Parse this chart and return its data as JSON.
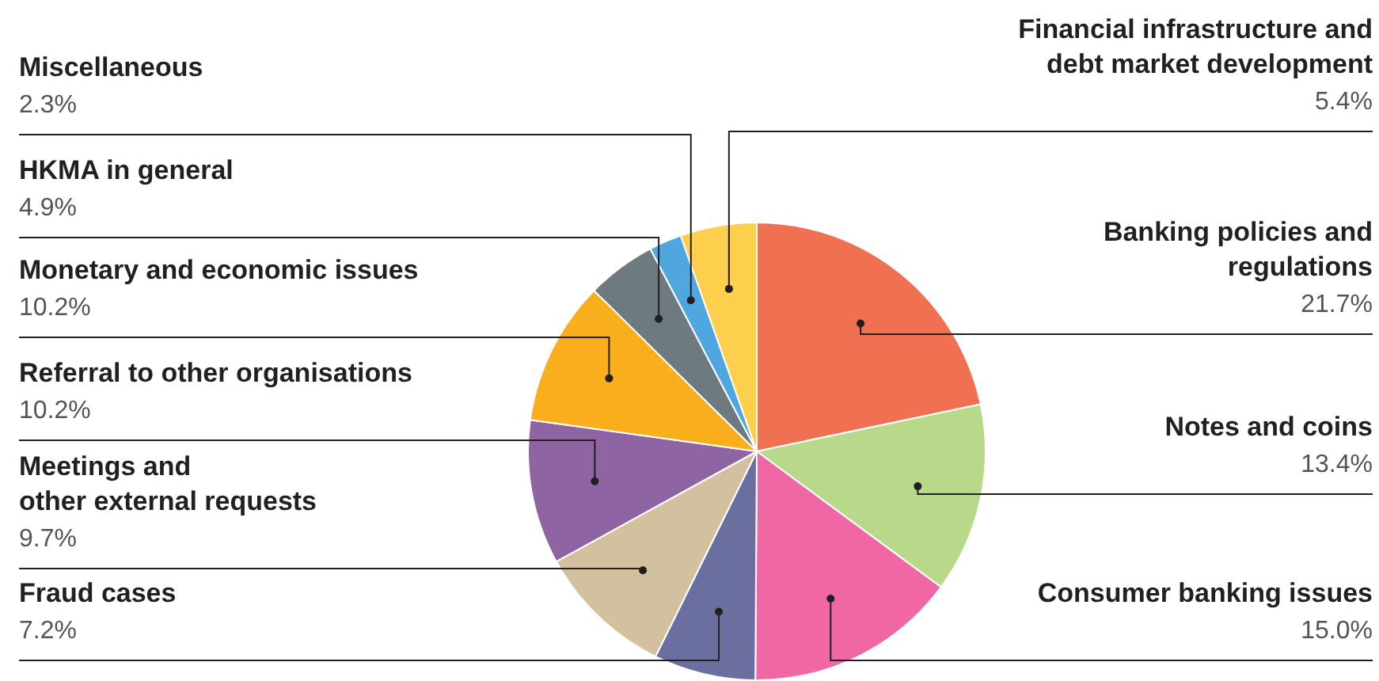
{
  "chart_data": {
    "type": "pie",
    "categories": [
      "Banking policies and\nregulations",
      "Notes and coins",
      "Consumer banking issues",
      "Fraud cases",
      "Meetings and\nother external requests",
      "Referral to other organisations",
      "Monetary and economic issues",
      "HKMA in general",
      "Miscellaneous",
      "Financial infrastructure and\ndebt market development"
    ],
    "values": [
      21.7,
      13.4,
      15.0,
      7.2,
      9.7,
      10.2,
      10.2,
      4.9,
      2.3,
      5.4
    ],
    "value_labels": [
      "21.7%",
      "13.4%",
      "15.0%",
      "7.2%",
      "9.7%",
      "10.2%",
      "10.2%",
      "4.9%",
      "2.3%",
      "5.4%"
    ],
    "colors": [
      "#f07152",
      "#b8d98a",
      "#f067a6",
      "#6b6fa0",
      "#d3c09e",
      "#8f64a3",
      "#f9ae1c",
      "#6d7a80",
      "#4ea8df",
      "#fecf4d"
    ]
  }
}
